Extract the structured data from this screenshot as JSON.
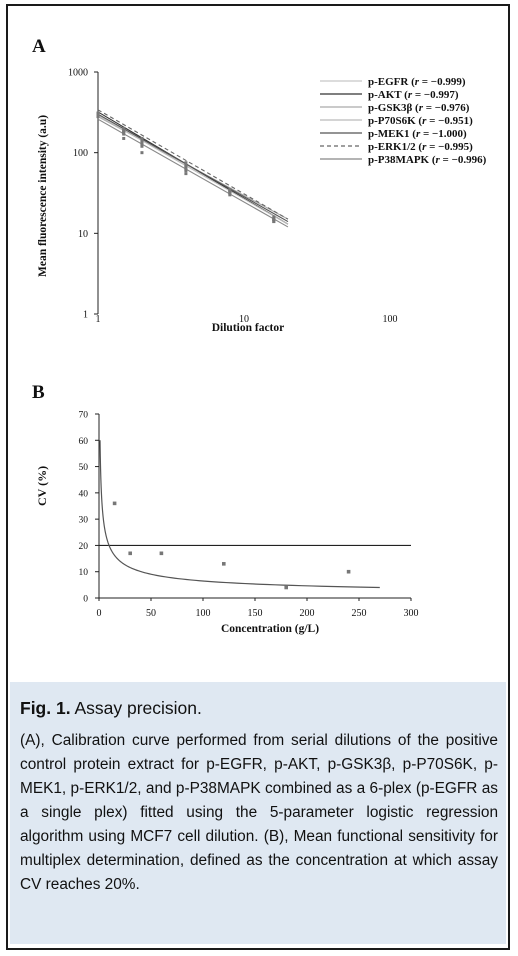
{
  "figure": {
    "caption_label": "Fig. 1.",
    "caption_title": "Assay precision.",
    "caption_text": "(A), Calibration curve performed from serial dilutions of the positive control protein extract for p-EGFR, p-AKT, p-GSK3β, p-P70S6K, p-MEK1, p-ERK1/2, and p-P38MAPK combined as a 6-plex (p-EGFR as a single plex) fitted using the 5-parameter logistic regression algorithm using MCF7 cell dilution. (B), Mean functional sensitivity for multiplex determination, defined as the concentration at which assay CV reaches 20%."
  },
  "chart_data": [
    {
      "panel": "A",
      "type": "line",
      "xscale": "log",
      "yscale": "log",
      "xlabel": "Dilution factor",
      "ylabel": "Mean fluorescence intensity (a.u)",
      "xlim": [
        1,
        100
      ],
      "ylim": [
        1,
        1000
      ],
      "xticks": [
        "1",
        "10",
        "100"
      ],
      "yticks": [
        "1",
        "10",
        "100",
        "1000"
      ],
      "legend_position": "top-right",
      "series": [
        {
          "name": "p-EGFR",
          "r": "−0.999",
          "color": "#c8c8c8",
          "dash": "",
          "x": [
            1,
            1.5,
            2,
            4,
            8,
            16
          ],
          "y": [
            300,
            190,
            140,
            70,
            35,
            15
          ],
          "fit": [
            [
              1,
              300
            ],
            [
              20,
              14
            ]
          ]
        },
        {
          "name": "p-AKT",
          "r": "−0.997",
          "color": "#333333",
          "dash": "",
          "x": [
            1,
            1.5,
            2,
            4,
            8,
            16
          ],
          "y": [
            310,
            175,
            120,
            62,
            31,
            14
          ],
          "fit": [
            [
              1,
              320
            ],
            [
              20,
              13
            ]
          ]
        },
        {
          "name": "p-GSK3β",
          "r": "−0.976",
          "color": "#aaaaaa",
          "dash": "",
          "x": [
            1,
            1.5,
            2,
            4,
            8,
            16
          ],
          "y": [
            280,
            150,
            100,
            55,
            30,
            14
          ],
          "fit": [
            [
              1,
              280
            ],
            [
              20,
              15
            ]
          ]
        },
        {
          "name": "p-P70S6K",
          "r": "−0.951",
          "color": "#bbbbbb",
          "dash": "",
          "x": [
            1,
            1.5,
            2,
            4,
            8,
            16
          ],
          "y": [
            290,
            200,
            150,
            75,
            34,
            16
          ],
          "fit": [
            [
              1,
              290
            ],
            [
              20,
              13
            ]
          ]
        },
        {
          "name": "p-MEK1",
          "r": "−1.000",
          "color": "#555555",
          "dash": "",
          "x": [
            1,
            1.5,
            2,
            4,
            8,
            16
          ],
          "y": [
            300,
            180,
            130,
            65,
            33,
            15
          ],
          "fit": [
            [
              1,
              300
            ],
            [
              20,
              14
            ]
          ]
        },
        {
          "name": "p-ERK1/2",
          "r": "−0.995",
          "color": "#666666",
          "dash": "4,3",
          "x": [
            1,
            1.5,
            2,
            4,
            8,
            16
          ],
          "y": [
            295,
            170,
            125,
            60,
            32,
            15
          ],
          "fit": [
            [
              1,
              340
            ],
            [
              20,
              15
            ]
          ]
        },
        {
          "name": "p-P38MAPK",
          "r": "−0.996",
          "color": "#888888",
          "dash": "",
          "x": [
            1,
            1.5,
            2,
            4,
            8,
            16
          ],
          "y": [
            305,
            185,
            135,
            68,
            34,
            15
          ],
          "fit": [
            [
              1,
              260
            ],
            [
              20,
              12
            ]
          ]
        }
      ]
    },
    {
      "panel": "B",
      "type": "scatter",
      "xlabel": "Concentration (g/L)",
      "ylabel": "CV (%)",
      "xlim": [
        0,
        300
      ],
      "ylim": [
        0,
        70
      ],
      "xticks": [
        "0",
        "50",
        "100",
        "150",
        "200",
        "250",
        "300"
      ],
      "yticks": [
        "0",
        "10",
        "20",
        "30",
        "40",
        "50",
        "60",
        "70"
      ],
      "points": {
        "x": [
          15,
          30,
          60,
          120,
          180,
          240
        ],
        "y": [
          36,
          17,
          17,
          13,
          4,
          10
        ]
      },
      "threshold": 20,
      "fit_curve": {
        "type": "power",
        "x": [
          1,
          270
        ],
        "y_at_1": 60
      }
    }
  ]
}
